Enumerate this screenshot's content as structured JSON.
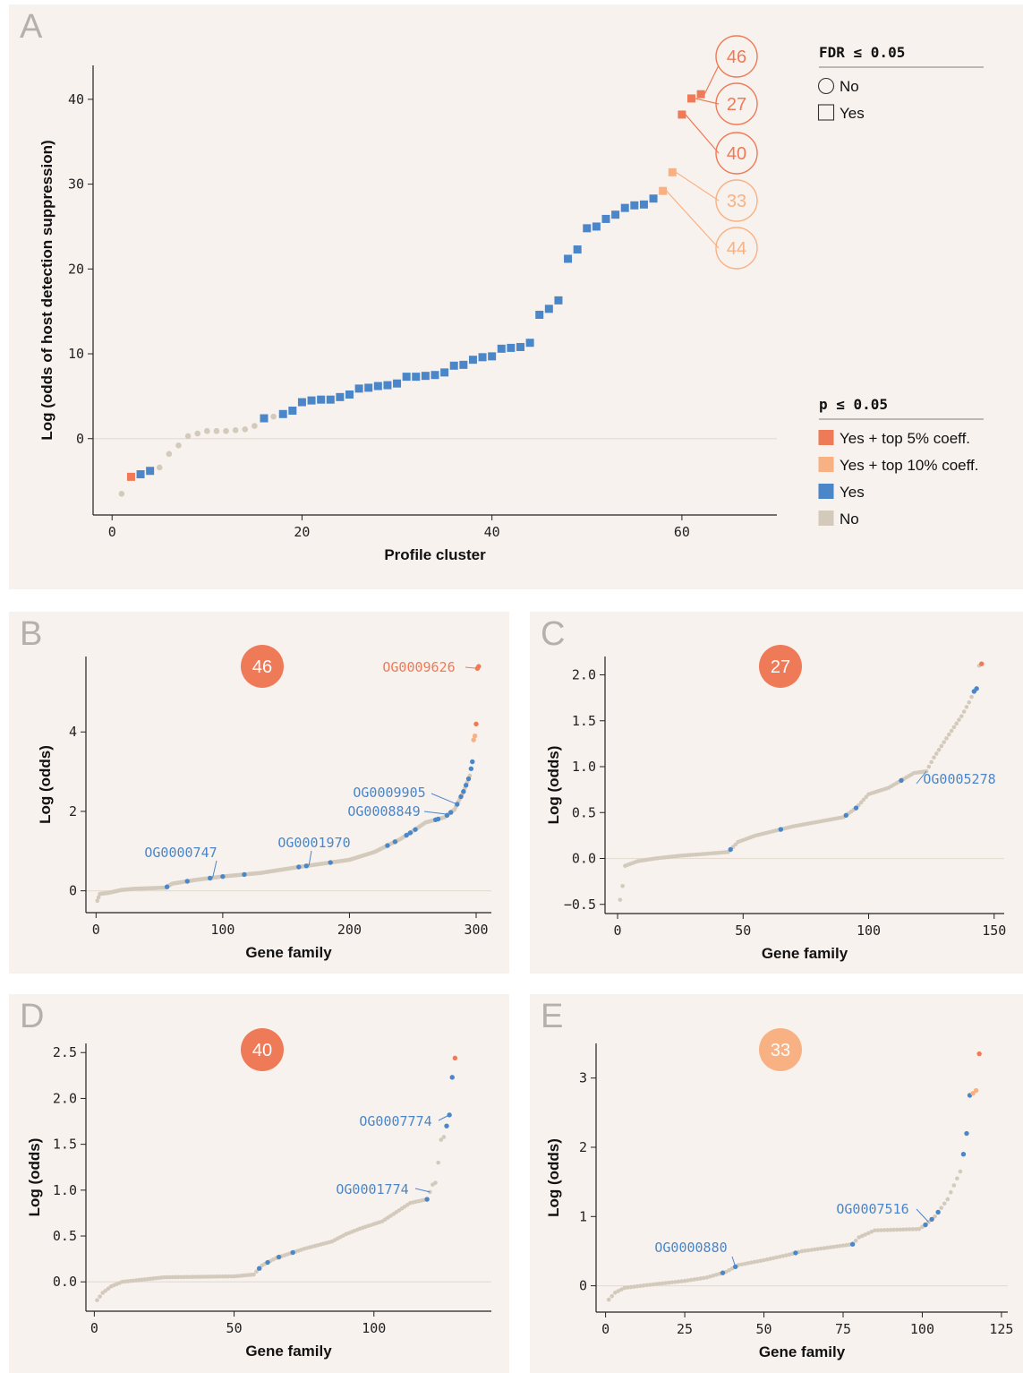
{
  "colors": {
    "top5": "#ee7a57",
    "top10": "#f8b183",
    "yes": "#4a86c8",
    "no": "#d3cabc",
    "panel_bg": "#f8f2ee"
  },
  "panels": {
    "a": {
      "letter": "A"
    },
    "b": {
      "letter": "B"
    },
    "c": {
      "letter": "C"
    },
    "d": {
      "letter": "D"
    },
    "e": {
      "letter": "E"
    }
  },
  "legend": {
    "fdr_title": "FDR ≤ 0.05",
    "fdr_items": [
      "No",
      "Yes"
    ],
    "p_title": "p ≤ 0.05",
    "p_items": [
      "Yes + top 5% coeff.",
      "Yes + top 10% coeff.",
      "Yes",
      "No"
    ]
  },
  "chart_data": [
    {
      "panel": "A",
      "type": "scatter",
      "xlabel": "Profile cluster",
      "ylabel": "Log (odds of host detection suppression)",
      "xlim": [
        -2,
        70
      ],
      "ylim": [
        -9,
        44
      ],
      "xticks": [
        0,
        20,
        40,
        60
      ],
      "yticks": [
        0,
        10,
        20,
        30,
        40
      ],
      "callouts": [
        {
          "label": "46",
          "cat": "top5",
          "x": 62,
          "y": 40.6
        },
        {
          "label": "27",
          "cat": "top5",
          "x": 61,
          "y": 40.1
        },
        {
          "label": "40",
          "cat": "top5",
          "x": 60,
          "y": 38.2
        },
        {
          "label": "33",
          "cat": "top10",
          "x": 59,
          "y": 31.4
        },
        {
          "label": "44",
          "cat": "top10",
          "x": 58,
          "y": 29.2
        }
      ],
      "points": [
        {
          "x": 1,
          "y": -6.5,
          "cat": "no",
          "fdr": false
        },
        {
          "x": 2,
          "y": -4.5,
          "cat": "top5",
          "fdr": true
        },
        {
          "x": 3,
          "y": -4.2,
          "cat": "yes",
          "fdr": true
        },
        {
          "x": 4,
          "y": -3.8,
          "cat": "yes",
          "fdr": true
        },
        {
          "x": 5,
          "y": -3.4,
          "cat": "no",
          "fdr": false
        },
        {
          "x": 6,
          "y": -1.8,
          "cat": "no",
          "fdr": false
        },
        {
          "x": 7,
          "y": -0.8,
          "cat": "no",
          "fdr": false
        },
        {
          "x": 8,
          "y": 0.3,
          "cat": "no",
          "fdr": false
        },
        {
          "x": 9,
          "y": 0.6,
          "cat": "no",
          "fdr": false
        },
        {
          "x": 10,
          "y": 0.9,
          "cat": "no",
          "fdr": false
        },
        {
          "x": 11,
          "y": 0.9,
          "cat": "no",
          "fdr": false
        },
        {
          "x": 12,
          "y": 0.9,
          "cat": "no",
          "fdr": false
        },
        {
          "x": 13,
          "y": 1.0,
          "cat": "no",
          "fdr": false
        },
        {
          "x": 14,
          "y": 1.1,
          "cat": "no",
          "fdr": false
        },
        {
          "x": 15,
          "y": 1.5,
          "cat": "no",
          "fdr": false
        },
        {
          "x": 16,
          "y": 2.4,
          "cat": "yes",
          "fdr": true
        },
        {
          "x": 17,
          "y": 2.6,
          "cat": "no",
          "fdr": false
        },
        {
          "x": 18,
          "y": 2.9,
          "cat": "yes",
          "fdr": true
        },
        {
          "x": 19,
          "y": 3.3,
          "cat": "yes",
          "fdr": true
        },
        {
          "x": 20,
          "y": 4.3,
          "cat": "yes",
          "fdr": true
        },
        {
          "x": 21,
          "y": 4.5,
          "cat": "yes",
          "fdr": true
        },
        {
          "x": 22,
          "y": 4.6,
          "cat": "yes",
          "fdr": true
        },
        {
          "x": 23,
          "y": 4.6,
          "cat": "yes",
          "fdr": true
        },
        {
          "x": 24,
          "y": 4.9,
          "cat": "yes",
          "fdr": true
        },
        {
          "x": 25,
          "y": 5.2,
          "cat": "yes",
          "fdr": true
        },
        {
          "x": 26,
          "y": 5.9,
          "cat": "yes",
          "fdr": true
        },
        {
          "x": 27,
          "y": 6.0,
          "cat": "yes",
          "fdr": true
        },
        {
          "x": 28,
          "y": 6.2,
          "cat": "yes",
          "fdr": true
        },
        {
          "x": 29,
          "y": 6.3,
          "cat": "yes",
          "fdr": true
        },
        {
          "x": 30,
          "y": 6.5,
          "cat": "yes",
          "fdr": true
        },
        {
          "x": 31,
          "y": 7.3,
          "cat": "yes",
          "fdr": true
        },
        {
          "x": 32,
          "y": 7.3,
          "cat": "yes",
          "fdr": true
        },
        {
          "x": 33,
          "y": 7.4,
          "cat": "yes",
          "fdr": true
        },
        {
          "x": 34,
          "y": 7.5,
          "cat": "yes",
          "fdr": true
        },
        {
          "x": 35,
          "y": 7.8,
          "cat": "yes",
          "fdr": true
        },
        {
          "x": 36,
          "y": 8.6,
          "cat": "yes",
          "fdr": true
        },
        {
          "x": 37,
          "y": 8.7,
          "cat": "yes",
          "fdr": true
        },
        {
          "x": 38,
          "y": 9.3,
          "cat": "yes",
          "fdr": true
        },
        {
          "x": 39,
          "y": 9.6,
          "cat": "yes",
          "fdr": true
        },
        {
          "x": 40,
          "y": 9.7,
          "cat": "yes",
          "fdr": true
        },
        {
          "x": 41,
          "y": 10.6,
          "cat": "yes",
          "fdr": true
        },
        {
          "x": 42,
          "y": 10.7,
          "cat": "yes",
          "fdr": true
        },
        {
          "x": 43,
          "y": 10.8,
          "cat": "yes",
          "fdr": true
        },
        {
          "x": 44,
          "y": 11.3,
          "cat": "yes",
          "fdr": true
        },
        {
          "x": 45,
          "y": 14.6,
          "cat": "yes",
          "fdr": true
        },
        {
          "x": 46,
          "y": 15.3,
          "cat": "yes",
          "fdr": true
        },
        {
          "x": 47,
          "y": 16.3,
          "cat": "yes",
          "fdr": true
        },
        {
          "x": 48,
          "y": 21.2,
          "cat": "yes",
          "fdr": true
        },
        {
          "x": 49,
          "y": 22.3,
          "cat": "yes",
          "fdr": true
        },
        {
          "x": 50,
          "y": 24.8,
          "cat": "yes",
          "fdr": true
        },
        {
          "x": 51,
          "y": 25.0,
          "cat": "yes",
          "fdr": true
        },
        {
          "x": 52,
          "y": 25.9,
          "cat": "yes",
          "fdr": true
        },
        {
          "x": 53,
          "y": 26.4,
          "cat": "yes",
          "fdr": true
        },
        {
          "x": 54,
          "y": 27.2,
          "cat": "yes",
          "fdr": true
        },
        {
          "x": 55,
          "y": 27.5,
          "cat": "yes",
          "fdr": true
        },
        {
          "x": 56,
          "y": 27.6,
          "cat": "yes",
          "fdr": true
        },
        {
          "x": 57,
          "y": 28.3,
          "cat": "yes",
          "fdr": true
        },
        {
          "x": 58,
          "y": 29.2,
          "cat": "top10",
          "fdr": true
        },
        {
          "x": 59,
          "y": 31.4,
          "cat": "top10",
          "fdr": true
        },
        {
          "x": 60,
          "y": 38.2,
          "cat": "top5",
          "fdr": true
        },
        {
          "x": 61,
          "y": 40.1,
          "cat": "top5",
          "fdr": true
        },
        {
          "x": 62,
          "y": 40.6,
          "cat": "top5",
          "fdr": true
        }
      ]
    },
    {
      "panel": "B",
      "type": "scatter",
      "cluster": "46",
      "cluster_cat": "top5",
      "xlabel": "Gene family",
      "ylabel": "Log (odds)",
      "xlim": [
        -8,
        312
      ],
      "ylim": [
        -0.55,
        5.9
      ],
      "xticks": [
        0,
        100,
        200,
        300
      ],
      "yticks": [
        0,
        2,
        4
      ],
      "n": 302,
      "curve": [
        [
          1,
          -0.25
        ],
        [
          3,
          -0.08
        ],
        [
          10,
          -0.05
        ],
        [
          20,
          0.02
        ],
        [
          30,
          0.05
        ],
        [
          55,
          0.08
        ],
        [
          60,
          0.18
        ],
        [
          80,
          0.28
        ],
        [
          100,
          0.36
        ],
        [
          130,
          0.45
        ],
        [
          160,
          0.6
        ],
        [
          200,
          0.78
        ],
        [
          220,
          0.98
        ],
        [
          240,
          1.3
        ],
        [
          250,
          1.5
        ],
        [
          260,
          1.72
        ],
        [
          275,
          1.85
        ],
        [
          283,
          2.05
        ],
        [
          290,
          2.5
        ],
        [
          295,
          2.9
        ],
        [
          297,
          3.25
        ],
        [
          298,
          3.8
        ],
        [
          299,
          3.9
        ],
        [
          300,
          4.2
        ],
        [
          301,
          5.6
        ],
        [
          302,
          5.65
        ]
      ],
      "yes_idx": [
        56,
        72,
        90,
        100,
        117,
        160,
        166,
        185,
        230,
        236,
        245,
        248,
        252,
        268,
        270,
        277,
        280,
        285,
        288,
        290,
        292,
        294,
        296,
        297
      ],
      "top10_idx": [
        298,
        299
      ],
      "top5_idx": [
        300,
        301,
        302
      ],
      "labels": [
        {
          "text": "OG0000747",
          "x": 92,
          "cat": "yes"
        },
        {
          "text": "OG0001970",
          "x": 168,
          "cat": "yes"
        },
        {
          "text": "OG0008849",
          "x": 278,
          "cat": "yes"
        },
        {
          "text": "OG0009905",
          "x": 285,
          "cat": "yes"
        },
        {
          "text": "OG0009626",
          "x": 301,
          "cat": "top5"
        }
      ]
    },
    {
      "panel": "C",
      "type": "scatter",
      "cluster": "27",
      "cluster_cat": "top5",
      "xlabel": "Gene family",
      "ylabel": "Log (odds)",
      "xlim": [
        -5,
        154
      ],
      "ylim": [
        -0.6,
        2.2
      ],
      "xticks": [
        0,
        50,
        100,
        150
      ],
      "yticks": [
        -0.5,
        0,
        0.5,
        1,
        1.5,
        2
      ],
      "n": 145,
      "curve": [
        [
          1,
          -0.45
        ],
        [
          2,
          -0.3
        ],
        [
          3,
          -0.08
        ],
        [
          8,
          -0.03
        ],
        [
          15,
          0.0
        ],
        [
          25,
          0.03
        ],
        [
          35,
          0.05
        ],
        [
          44,
          0.07
        ],
        [
          48,
          0.18
        ],
        [
          55,
          0.25
        ],
        [
          70,
          0.35
        ],
        [
          90,
          0.45
        ],
        [
          95,
          0.55
        ],
        [
          100,
          0.7
        ],
        [
          108,
          0.77
        ],
        [
          113,
          0.85
        ],
        [
          118,
          0.93
        ],
        [
          123,
          0.95
        ],
        [
          126,
          1.1
        ],
        [
          132,
          1.35
        ],
        [
          137,
          1.55
        ],
        [
          140,
          1.7
        ],
        [
          142,
          1.82
        ],
        [
          143,
          1.85
        ],
        [
          144,
          2.1
        ],
        [
          145,
          2.12
        ]
      ],
      "yes_idx": [
        45,
        65,
        91,
        95,
        113,
        142,
        143
      ],
      "top10_idx": [],
      "top5_idx": [
        145
      ],
      "labels": [
        {
          "text": "OG0005278",
          "x": 123,
          "cat": "yes"
        }
      ]
    },
    {
      "panel": "D",
      "type": "scatter",
      "cluster": "40",
      "cluster_cat": "top5",
      "xlabel": "Gene family",
      "ylabel": "Log (odds)",
      "xlim": [
        -3,
        142
      ],
      "ylim": [
        -0.32,
        2.6
      ],
      "xticks": [
        0,
        50,
        100
      ],
      "yticks": [
        0.0,
        0.5,
        1.0,
        1.5,
        2.0,
        2.5
      ],
      "n": 129,
      "curve": [
        [
          1,
          -0.2
        ],
        [
          3,
          -0.12
        ],
        [
          6,
          -0.05
        ],
        [
          10,
          0.0
        ],
        [
          25,
          0.05
        ],
        [
          50,
          0.06
        ],
        [
          57,
          0.08
        ],
        [
          60,
          0.18
        ],
        [
          65,
          0.26
        ],
        [
          75,
          0.36
        ],
        [
          85,
          0.44
        ],
        [
          90,
          0.52
        ],
        [
          95,
          0.58
        ],
        [
          103,
          0.66
        ],
        [
          108,
          0.76
        ],
        [
          113,
          0.86
        ],
        [
          119,
          0.9
        ],
        [
          121,
          1.06
        ],
        [
          122,
          1.08
        ],
        [
          123,
          1.3
        ],
        [
          124,
          1.55
        ],
        [
          125,
          1.58
        ],
        [
          126,
          1.7
        ],
        [
          127,
          1.82
        ],
        [
          128,
          2.23
        ],
        [
          129,
          2.44
        ]
      ],
      "yes_idx": [
        59,
        62,
        66,
        71,
        119,
        126,
        127,
        128
      ],
      "top10_idx": [],
      "top5_idx": [
        129
      ],
      "labels": [
        {
          "text": "OG0001774",
          "x": 120,
          "cat": "yes"
        },
        {
          "text": "OG0007774",
          "x": 127,
          "cat": "yes"
        }
      ]
    },
    {
      "panel": "E",
      "type": "scatter",
      "cluster": "33",
      "cluster_cat": "top10",
      "xlabel": "Gene family",
      "ylabel": "Log (odds)",
      "xlim": [
        -3,
        127
      ],
      "ylim": [
        -0.38,
        3.5
      ],
      "xticks": [
        0,
        25,
        50,
        75,
        100,
        125
      ],
      "yticks": [
        0,
        1,
        2,
        3
      ],
      "n": 118,
      "curve": [
        [
          1,
          -0.2
        ],
        [
          3,
          -0.1
        ],
        [
          6,
          -0.03
        ],
        [
          15,
          0.02
        ],
        [
          25,
          0.07
        ],
        [
          32,
          0.12
        ],
        [
          38,
          0.2
        ],
        [
          42,
          0.3
        ],
        [
          50,
          0.37
        ],
        [
          58,
          0.45
        ],
        [
          62,
          0.5
        ],
        [
          70,
          0.55
        ],
        [
          78,
          0.6
        ],
        [
          80,
          0.7
        ],
        [
          85,
          0.8
        ],
        [
          99,
          0.82
        ],
        [
          101,
          0.88
        ],
        [
          104,
          1.0
        ],
        [
          108,
          1.25
        ],
        [
          110,
          1.45
        ],
        [
          112,
          1.65
        ],
        [
          113,
          1.9
        ],
        [
          114,
          2.2
        ],
        [
          115,
          2.75
        ],
        [
          116,
          2.78
        ],
        [
          117,
          2.82
        ],
        [
          118,
          3.35
        ]
      ],
      "yes_idx": [
        37,
        41,
        60,
        78,
        101,
        103,
        105,
        113,
        114,
        115
      ],
      "top10_idx": [
        116,
        117
      ],
      "top5_idx": [
        118
      ],
      "labels": [
        {
          "text": "OG0000880",
          "x": 41,
          "cat": "yes"
        },
        {
          "text": "OG0007516",
          "x": 102,
          "cat": "yes"
        }
      ]
    }
  ]
}
